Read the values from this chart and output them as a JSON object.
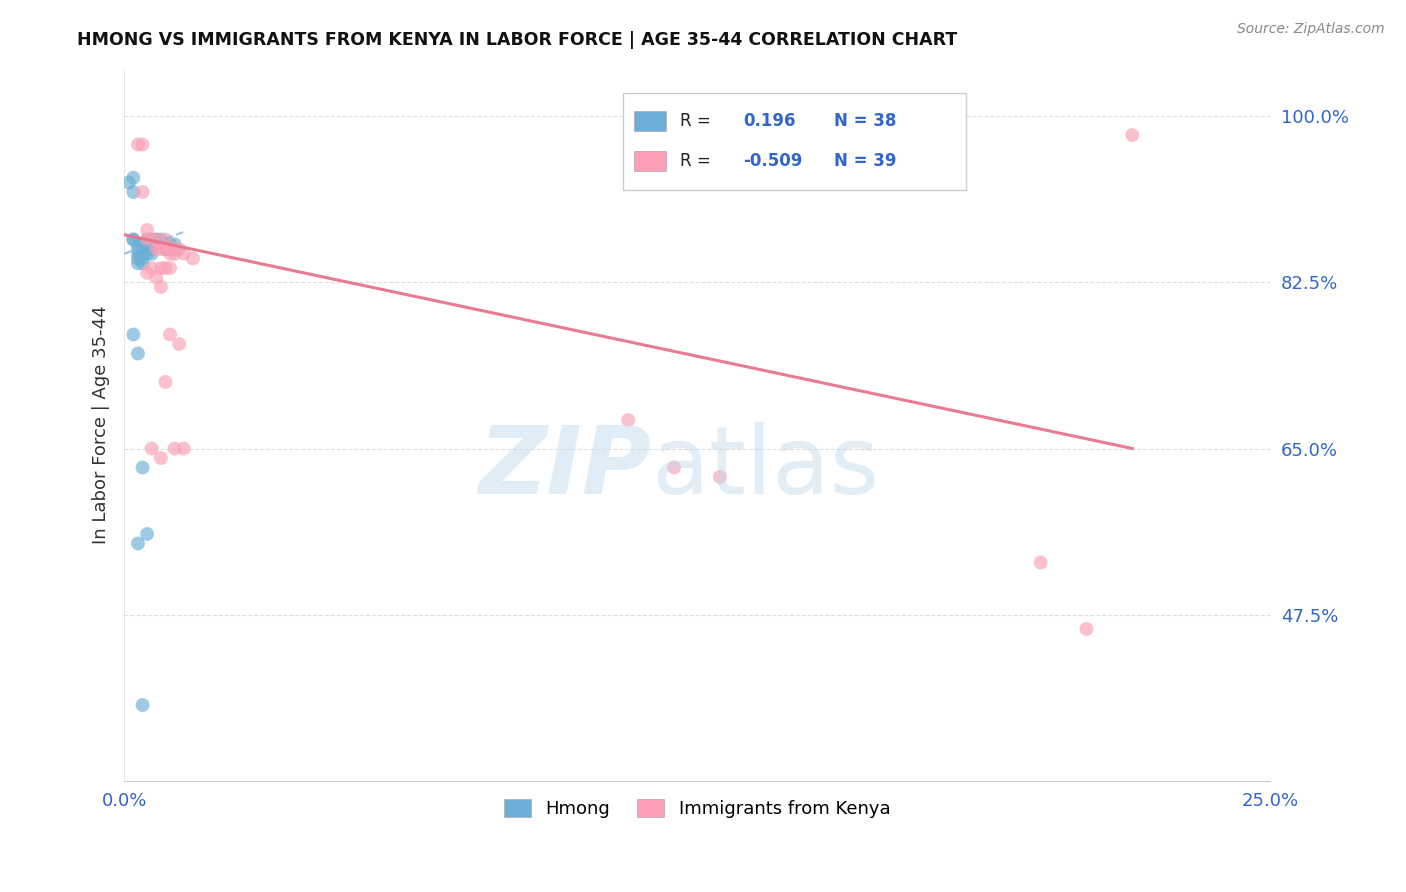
{
  "title": "HMONG VS IMMIGRANTS FROM KENYA IN LABOR FORCE | AGE 35-44 CORRELATION CHART",
  "source": "Source: ZipAtlas.com",
  "ylabel": "In Labor Force | Age 35-44",
  "x_min": 0.0,
  "x_max": 0.25,
  "y_min": 0.3,
  "y_max": 1.05,
  "y_ticks": [
    1.0,
    0.825,
    0.65,
    0.475
  ],
  "y_tick_labels": [
    "100.0%",
    "82.5%",
    "65.0%",
    "47.5%"
  ],
  "x_ticks": [
    0.0,
    0.25
  ],
  "x_tick_labels": [
    "0.0%",
    "25.0%"
  ],
  "legend_label_blue": "Hmong",
  "legend_label_pink": "Immigrants from Kenya",
  "R_blue": 0.196,
  "N_blue": 38,
  "R_pink": -0.509,
  "N_pink": 39,
  "blue_scatter_color": "#6baed6",
  "pink_scatter_color": "#fa9fb5",
  "blue_line_color": "#4a90c4",
  "pink_line_color": "#e8748a",
  "grid_color": "#dddddd",
  "hmong_x": [
    0.001,
    0.002,
    0.002,
    0.002,
    0.003,
    0.003,
    0.003,
    0.003,
    0.003,
    0.004,
    0.004,
    0.004,
    0.004,
    0.004,
    0.005,
    0.005,
    0.005,
    0.005,
    0.006,
    0.006,
    0.006,
    0.006,
    0.007,
    0.007,
    0.008,
    0.008,
    0.009,
    0.009,
    0.01,
    0.01,
    0.011,
    0.002,
    0.003,
    0.004,
    0.005,
    0.003,
    0.004,
    0.002
  ],
  "hmong_y": [
    0.93,
    0.935,
    0.92,
    0.87,
    0.865,
    0.86,
    0.855,
    0.85,
    0.845,
    0.865,
    0.86,
    0.855,
    0.85,
    0.845,
    0.87,
    0.865,
    0.86,
    0.855,
    0.87,
    0.865,
    0.86,
    0.855,
    0.87,
    0.865,
    0.87,
    0.865,
    0.865,
    0.86,
    0.865,
    0.86,
    0.865,
    0.77,
    0.75,
    0.63,
    0.56,
    0.55,
    0.38,
    0.87
  ],
  "kenya_x": [
    0.003,
    0.004,
    0.004,
    0.005,
    0.005,
    0.006,
    0.007,
    0.007,
    0.008,
    0.008,
    0.009,
    0.009,
    0.01,
    0.01,
    0.011,
    0.011,
    0.012,
    0.013,
    0.005,
    0.007,
    0.009,
    0.008,
    0.01,
    0.006,
    0.008,
    0.01,
    0.012,
    0.009,
    0.011,
    0.013,
    0.006,
    0.008,
    0.11,
    0.2,
    0.21,
    0.22,
    0.12,
    0.13,
    0.015
  ],
  "kenya_y": [
    0.97,
    0.97,
    0.92,
    0.88,
    0.87,
    0.87,
    0.87,
    0.86,
    0.865,
    0.86,
    0.87,
    0.86,
    0.86,
    0.855,
    0.86,
    0.855,
    0.86,
    0.855,
    0.835,
    0.83,
    0.84,
    0.82,
    0.84,
    0.84,
    0.84,
    0.77,
    0.76,
    0.72,
    0.65,
    0.65,
    0.65,
    0.64,
    0.68,
    0.53,
    0.46,
    0.98,
    0.63,
    0.62,
    0.85
  ]
}
